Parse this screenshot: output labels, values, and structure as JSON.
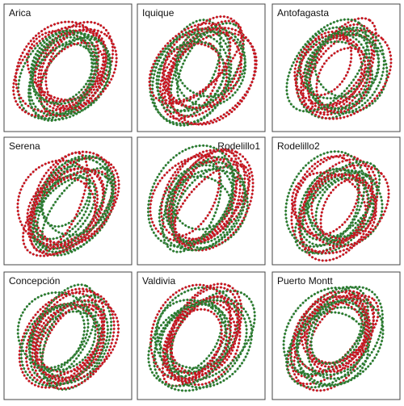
{
  "panels": [
    {
      "label": "Arica"
    },
    {
      "label": "Iquique"
    },
    {
      "label": "Antofagasta"
    },
    {
      "label": "Serena"
    },
    {
      "label": "Rodelillo1"
    },
    {
      "label": "Rodelillo2"
    },
    {
      "label": "Concepción"
    },
    {
      "label": "Valdivia"
    },
    {
      "label": "Puerto Montt"
    }
  ]
}
